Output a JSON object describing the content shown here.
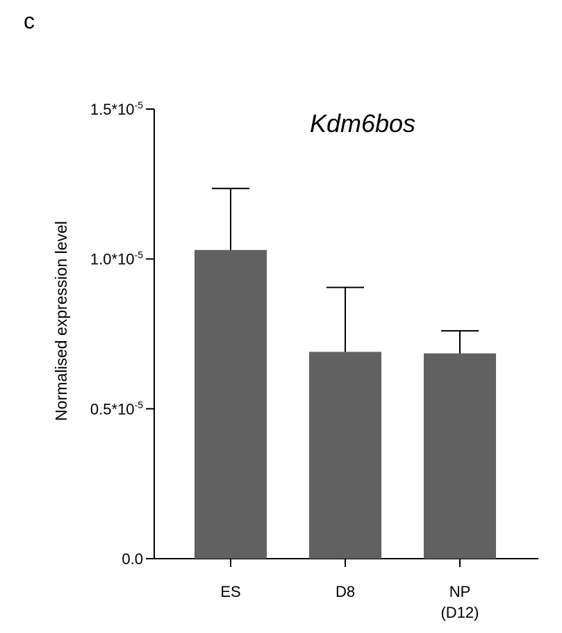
{
  "panel_label": "c",
  "chart_data": {
    "type": "bar",
    "title": "Kdm6bos",
    "xlabel": "",
    "ylabel": "Normalised expression level",
    "categories": [
      [
        "ES"
      ],
      [
        "D8"
      ],
      [
        "NP",
        "(D12)"
      ]
    ],
    "values": [
      1.03e-05,
      6.9e-06,
      6.85e-06
    ],
    "error_upper": [
      2.05e-06,
      2.15e-06,
      7.5e-07
    ],
    "ylim": [
      0,
      1.5e-05
    ],
    "yticks": [
      {
        "value": 0,
        "label": "0.0",
        "sup": ""
      },
      {
        "value": 5e-06,
        "label": "0.5*10",
        "sup": "-5"
      },
      {
        "value": 1e-05,
        "label": "1.0*10",
        "sup": "-5"
      },
      {
        "value": 1.5e-05,
        "label": "1.5*10",
        "sup": "-5"
      }
    ],
    "bar_color": "#616161",
    "grid": false,
    "legend": "none"
  }
}
